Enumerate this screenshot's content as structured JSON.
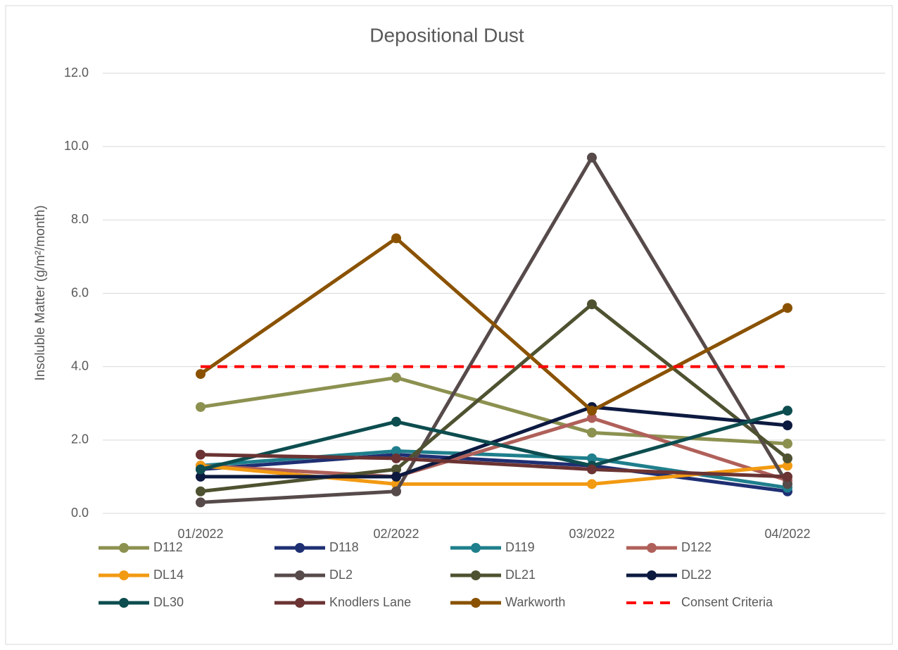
{
  "chart_data": {
    "type": "line",
    "title": "Depositional Dust",
    "y_label": "Insoluble Matter (g/m²/month)",
    "categories": [
      "01/2022",
      "02/2022",
      "03/2022",
      "04/2022"
    ],
    "ylim": [
      0,
      12
    ],
    "yticks": [
      {
        "value": 0,
        "label": "0.0"
      },
      {
        "value": 2,
        "label": "2.0"
      },
      {
        "value": 4,
        "label": "4.0"
      },
      {
        "value": 6,
        "label": "6.0"
      },
      {
        "value": 8,
        "label": "8.0"
      },
      {
        "value": 10,
        "label": "10.0"
      },
      {
        "value": 12,
        "label": "12.0"
      }
    ],
    "grid": true,
    "legend": "bottom",
    "series": [
      {
        "name": "D112",
        "color": "#8c9150",
        "values": [
          2.9,
          3.7,
          2.2,
          1.9
        ]
      },
      {
        "name": "D118",
        "color": "#1f2f73",
        "values": [
          1.2,
          1.6,
          1.3,
          0.6
        ]
      },
      {
        "name": "D119",
        "color": "#1f7f8c",
        "values": [
          1.3,
          1.7,
          1.5,
          0.7
        ]
      },
      {
        "name": "D122",
        "color": "#b0605a",
        "values": [
          1.3,
          1.0,
          2.6,
          0.9
        ]
      },
      {
        "name": "DL14",
        "color": "#f29a12",
        "values": [
          1.3,
          0.8,
          0.8,
          1.3
        ]
      },
      {
        "name": "DL2",
        "color": "#574a4a",
        "values": [
          0.3,
          0.6,
          9.7,
          0.8
        ]
      },
      {
        "name": "DL21",
        "color": "#4f5230",
        "values": [
          0.6,
          1.2,
          5.7,
          1.5
        ]
      },
      {
        "name": "DL22",
        "color": "#0d1a40",
        "values": [
          1.0,
          1.0,
          2.9,
          2.4
        ]
      },
      {
        "name": "DL30",
        "color": "#0d4d4f",
        "values": [
          1.2,
          2.5,
          1.3,
          2.8
        ]
      },
      {
        "name": "Knodlers Lane",
        "color": "#6b3333",
        "values": [
          1.6,
          1.5,
          1.2,
          1.0
        ]
      },
      {
        "name": "Warkworth",
        "color": "#8a5200",
        "values": [
          3.8,
          7.5,
          2.8,
          5.6
        ]
      },
      {
        "name": "Consent Criteria",
        "color": "#ff0000",
        "linestyle": "dashed",
        "markers": false,
        "values": [
          4.0,
          4.0,
          4.0,
          4.0
        ]
      }
    ]
  }
}
